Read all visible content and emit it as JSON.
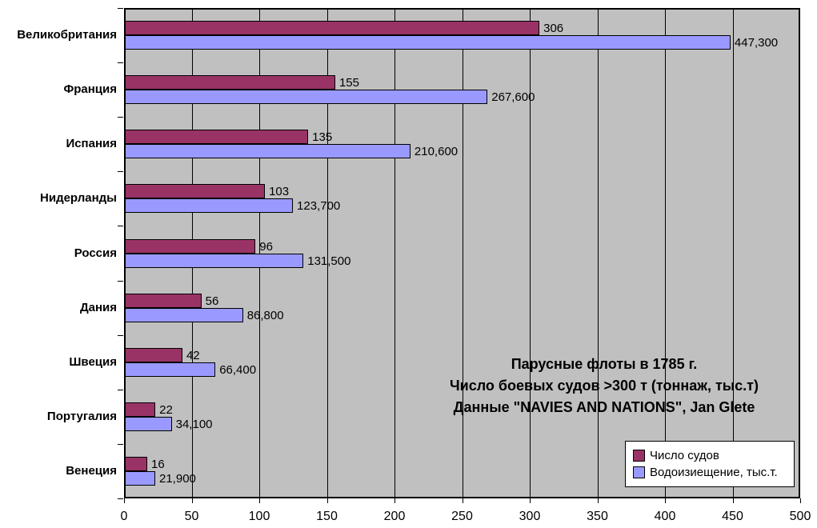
{
  "chart_data": {
    "type": "bar",
    "orientation": "horizontal",
    "title_lines": [
      "Парусные флоты в 1785 г.",
      "Число боевых судов >300 т (тоннаж, тыс.т)",
      "Данные \"NAVIES AND NATIONS\", Jan Glete"
    ],
    "categories": [
      "Великобритания",
      "Франция",
      "Испания",
      "Нидерланды",
      "Россия",
      "Дания",
      "Швеция",
      "Португалия",
      "Венеция"
    ],
    "series": [
      {
        "name": "Число судов",
        "color": "#993366",
        "values": [
          306,
          155,
          135,
          103,
          96,
          56,
          42,
          22,
          16
        ],
        "labels": [
          "306",
          "155",
          "135",
          "103",
          "96",
          "56",
          "42",
          "22",
          "16"
        ]
      },
      {
        "name": "Водоизиещение, тыс.т.",
        "color": "#9999ff",
        "values": [
          447.3,
          267.6,
          210.6,
          123.7,
          131.5,
          86.8,
          66.4,
          34.1,
          21.9
        ],
        "labels": [
          "447,300",
          "267,600",
          "210,600",
          "123,700",
          "131,500",
          "86,800",
          "66,400",
          "34,100",
          "21,900"
        ]
      }
    ],
    "x_axis": {
      "min": 0,
      "max": 500,
      "tick_step": 50,
      "ticks": [
        0,
        50,
        100,
        150,
        200,
        250,
        300,
        350,
        400,
        450,
        500
      ]
    },
    "legend_position": "bottom-right",
    "plot_background": "#c0c0c0",
    "grid": true
  }
}
